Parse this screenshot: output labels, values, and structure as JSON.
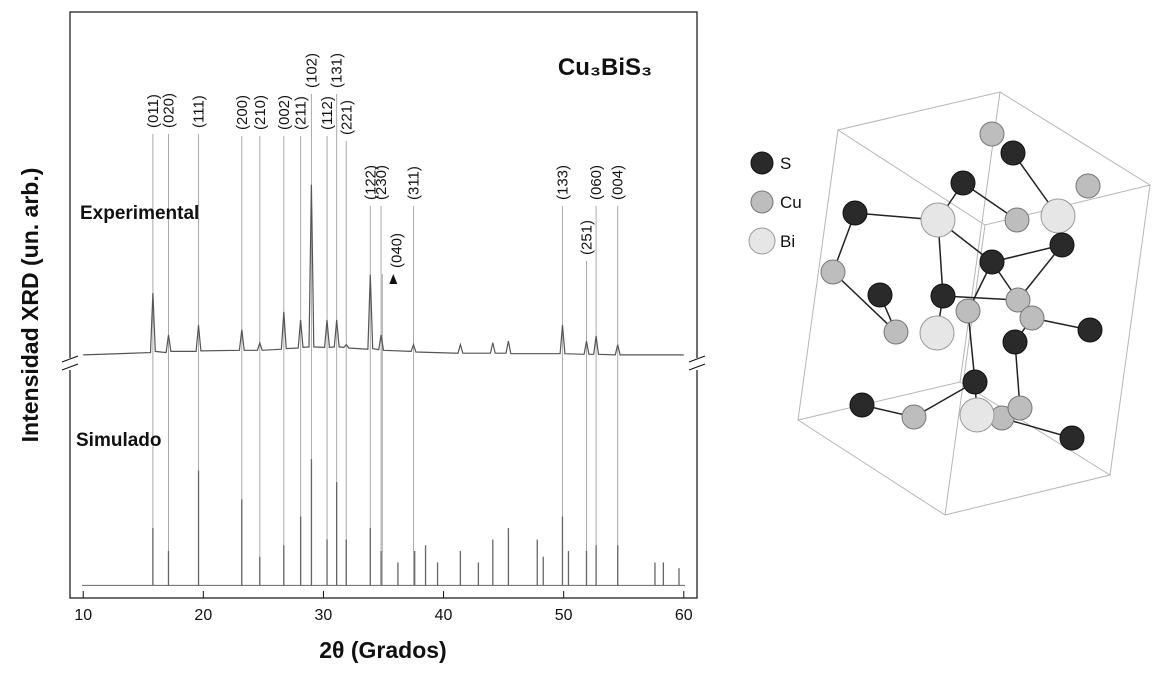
{
  "chart_data": {
    "type": "xrd",
    "title": "Cu₃BiS₃",
    "xlabel": "2θ (Grados)",
    "ylabel": "Intensidad XRD (un. arb.)",
    "xlim": [
      8.9,
      61.1
    ],
    "xticks": [
      10,
      20,
      30,
      40,
      50,
      60
    ],
    "ylim": [
      -2.2,
      100
    ],
    "series": [
      {
        "name": "Experimental",
        "color": "#555555",
        "x": [
          10,
          15.6,
          15.8,
          16.0,
          16.9,
          17.1,
          17.3,
          19.4,
          19.6,
          19.8,
          23.0,
          23.2,
          23.4,
          24.5,
          24.7,
          24.9,
          26.5,
          26.7,
          26.9,
          27.9,
          28.1,
          28.3,
          28.8,
          29.0,
          29.2,
          30.1,
          30.3,
          30.5,
          30.9,
          31.1,
          31.3,
          31.7,
          31.9,
          32.1,
          33.7,
          33.9,
          34.1,
          34.6,
          34.8,
          35.0,
          37.3,
          37.5,
          37.7,
          41.2,
          41.4,
          41.6,
          43.9,
          44.1,
          44.3,
          45.2,
          45.4,
          45.6,
          49.7,
          49.9,
          50.1,
          51.7,
          51.9,
          52.1,
          52.5,
          52.7,
          52.9,
          54.3,
          54.5,
          54.7,
          60
        ],
        "values": [
          40.2,
          40.6,
          51.0,
          40.8,
          40.6,
          43.7,
          40.8,
          40.8,
          45.4,
          40.9,
          41.0,
          44.6,
          41.0,
          41.0,
          42.3,
          41.0,
          41.2,
          47.7,
          41.3,
          41.4,
          46.3,
          41.5,
          41.6,
          69.9,
          41.6,
          41.5,
          46.3,
          41.5,
          41.6,
          46.3,
          41.6,
          41.5,
          42.0,
          41.4,
          41.2,
          54.2,
          41.3,
          41.1,
          43.7,
          41.0,
          40.8,
          42.0,
          40.7,
          40.5,
          42.0,
          40.5,
          40.5,
          42.3,
          40.5,
          40.5,
          42.6,
          40.4,
          40.4,
          45.4,
          40.4,
          40.3,
          42.6,
          40.3,
          40.3,
          43.5,
          40.3,
          40.2,
          42.0,
          40.2,
          40.2
        ]
      },
      {
        "name": "Simulado",
        "color": "#666666",
        "x": [
          15.8,
          17.1,
          19.6,
          23.2,
          24.7,
          26.7,
          28.1,
          29.0,
          30.3,
          31.1,
          31.9,
          33.9,
          34.8,
          36.2,
          37.6,
          38.5,
          39.5,
          41.4,
          42.9,
          44.1,
          45.4,
          47.8,
          48.3,
          49.9,
          50.4,
          51.9,
          52.7,
          54.5,
          57.6,
          58.3,
          59.6
        ],
        "values": [
          10,
          6,
          20,
          15,
          5,
          7,
          12,
          22,
          8,
          18,
          8,
          10,
          6,
          4,
          6,
          7,
          4,
          6,
          4,
          8,
          10,
          8,
          5,
          12,
          6,
          6,
          7,
          7,
          4,
          4,
          3
        ]
      }
    ],
    "annotations": [
      {
        "text": "(011)",
        "x": 15.8
      },
      {
        "text": "(020)",
        "x": 17.1
      },
      {
        "text": "(111)",
        "x": 19.6
      },
      {
        "text": "(200)",
        "x": 23.2
      },
      {
        "text": "(210)",
        "x": 24.7
      },
      {
        "text": "(002)",
        "x": 26.7
      },
      {
        "text": "(211)",
        "x": 28.1
      },
      {
        "text": "(102)",
        "x": 29.0
      },
      {
        "text": "(112)",
        "x": 30.3
      },
      {
        "text": "(131)",
        "x": 31.1
      },
      {
        "text": "(221)",
        "x": 31.9
      },
      {
        "text": "(122)",
        "x": 33.9
      },
      {
        "text": "(230)",
        "x": 34.8
      },
      {
        "text": "(311)",
        "x": 37.5
      },
      {
        "text": "(040)",
        "x": 34.9
      },
      {
        "text": "(133)",
        "x": 49.9
      },
      {
        "text": "(251)",
        "x": 51.9
      },
      {
        "text": "(060)",
        "x": 52.7
      },
      {
        "text": "(004)",
        "x": 54.5
      }
    ]
  },
  "structure": {
    "legend": [
      "S",
      "Cu",
      "Bi"
    ]
  }
}
